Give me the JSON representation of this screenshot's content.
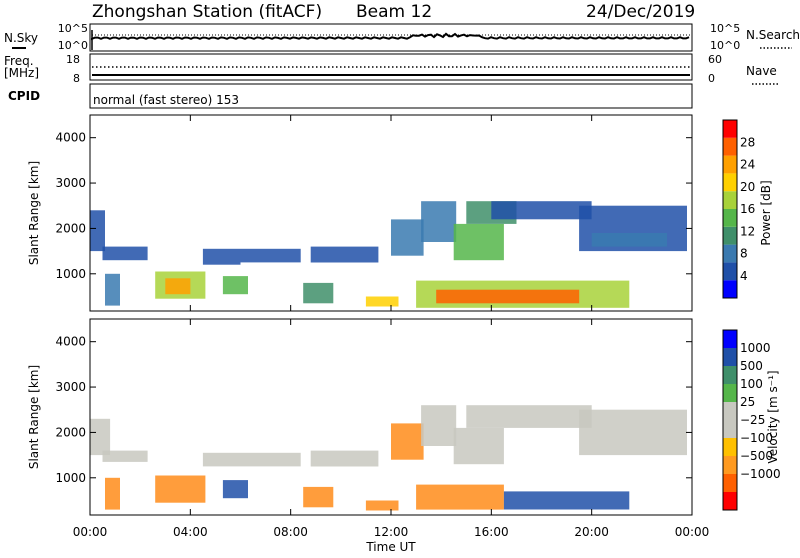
{
  "header": {
    "station": "Zhongshan Station (fitACF)",
    "beam": "Beam 12",
    "date": "24/Dec/2019"
  },
  "noise_panel": {
    "left_label": "N.Sky",
    "right_label": "N.Search",
    "left_ticks": [
      "10^5",
      "10^0"
    ],
    "right_ticks": [
      "10^5",
      "10^0"
    ]
  },
  "freq_panel": {
    "left_label_1": "Freq.",
    "left_label_2": "[MHz]",
    "right_label": "Nave",
    "left_ticks": [
      "18",
      "8"
    ],
    "right_ticks": [
      "60",
      "0"
    ]
  },
  "cpid_panel": {
    "label": "CPID",
    "text": "normal (fast stereo) 153"
  },
  "colors": {
    "power_scale": [
      "#0000ff",
      "#2050a8",
      "#3a7ab0",
      "#3f8f6a",
      "#55b64a",
      "#a8d23a",
      "#ffd000",
      "#ffa000",
      "#ff6000",
      "#ff0000"
    ],
    "velocity_scale": [
      "#ff0000",
      "#ff6000",
      "#ff9a20",
      "#ffc000",
      "#c8c8c0",
      "#c8c8c0",
      "#55b64a",
      "#3f8f6a",
      "#2050a8",
      "#0000ff"
    ]
  },
  "chart_data": [
    {
      "type": "heatmap",
      "name": "power",
      "ylabel": "Slant Range [km]",
      "ylim": [
        180,
        4500
      ],
      "yticks": [
        "1000",
        "2000",
        "3000",
        "4000"
      ],
      "xlim": [
        0,
        24
      ],
      "colorbar_label": "Power [dB]",
      "colorbar_ticks": [
        "4",
        "8",
        "12",
        "16",
        "20",
        "24",
        "28"
      ],
      "colorbar_range": [
        0,
        32
      ],
      "regions": [
        {
          "t0": 0.0,
          "t1": 0.6,
          "r0": 1500,
          "r1": 2400,
          "v": 5
        },
        {
          "t0": 0.5,
          "t1": 2.3,
          "r0": 1300,
          "r1": 1600,
          "v": 6
        },
        {
          "t0": 0.6,
          "t1": 1.2,
          "r0": 300,
          "r1": 1000,
          "v": 9
        },
        {
          "t0": 2.6,
          "t1": 4.6,
          "r0": 450,
          "r1": 1050,
          "v": 18
        },
        {
          "t0": 3.0,
          "t1": 4.0,
          "r0": 550,
          "r1": 900,
          "v": 24
        },
        {
          "t0": 4.5,
          "t1": 6.0,
          "r0": 1200,
          "r1": 1550,
          "v": 6
        },
        {
          "t0": 5.3,
          "t1": 6.3,
          "r0": 550,
          "r1": 950,
          "v": 14
        },
        {
          "t0": 6.0,
          "t1": 8.4,
          "r0": 1250,
          "r1": 1550,
          "v": 5
        },
        {
          "t0": 8.5,
          "t1": 9.7,
          "r0": 350,
          "r1": 800,
          "v": 11
        },
        {
          "t0": 8.8,
          "t1": 11.5,
          "r0": 1250,
          "r1": 1600,
          "v": 6
        },
        {
          "t0": 11.0,
          "t1": 12.3,
          "r0": 280,
          "r1": 500,
          "v": 22
        },
        {
          "t0": 12.0,
          "t1": 13.3,
          "r0": 1400,
          "r1": 2200,
          "v": 8
        },
        {
          "t0": 13.2,
          "t1": 14.6,
          "r0": 1700,
          "r1": 2600,
          "v": 9
        },
        {
          "t0": 13.0,
          "t1": 21.5,
          "r0": 250,
          "r1": 850,
          "v": 16
        },
        {
          "t0": 13.8,
          "t1": 19.5,
          "r0": 350,
          "r1": 650,
          "v": 27
        },
        {
          "t0": 14.5,
          "t1": 16.5,
          "r0": 1300,
          "r1": 2100,
          "v": 14
        },
        {
          "t0": 15.0,
          "t1": 17.0,
          "r0": 2100,
          "r1": 2600,
          "v": 10
        },
        {
          "t0": 16.0,
          "t1": 20.0,
          "r0": 2200,
          "r1": 2600,
          "v": 6
        },
        {
          "t0": 19.5,
          "t1": 23.8,
          "r0": 1500,
          "r1": 2500,
          "v": 6
        },
        {
          "t0": 20.0,
          "t1": 23.0,
          "r0": 1600,
          "r1": 1900,
          "v": 9
        }
      ]
    },
    {
      "type": "heatmap",
      "name": "velocity",
      "ylabel": "Slant Range [km]",
      "ylim": [
        180,
        4500
      ],
      "yticks": [
        "1000",
        "2000",
        "3000",
        "4000"
      ],
      "xlim": [
        0,
        24
      ],
      "xticks": [
        "00:00",
        "04:00",
        "08:00",
        "12:00",
        "16:00",
        "20:00",
        "00:00"
      ],
      "xlabel": "Time UT",
      "colorbar_label": "Velocity [m s⁻¹]",
      "colorbar_ticks": [
        "1000",
        "500",
        "100",
        "25",
        "−25",
        "−100",
        "−500",
        "−1000"
      ],
      "regions": [
        {
          "t0": 0.0,
          "t1": 0.8,
          "r0": 1500,
          "r1": 2300,
          "v": 0
        },
        {
          "t0": 0.5,
          "t1": 2.3,
          "r0": 1350,
          "r1": 1600,
          "v": 0
        },
        {
          "t0": 0.6,
          "t1": 1.2,
          "r0": 300,
          "r1": 1000,
          "v": -150
        },
        {
          "t0": 2.6,
          "t1": 4.6,
          "r0": 450,
          "r1": 1050,
          "v": -300
        },
        {
          "t0": 4.5,
          "t1": 8.4,
          "r0": 1250,
          "r1": 1550,
          "v": 0
        },
        {
          "t0": 5.3,
          "t1": 6.3,
          "r0": 550,
          "r1": 950,
          "v": 300
        },
        {
          "t0": 8.5,
          "t1": 9.7,
          "r0": 350,
          "r1": 800,
          "v": -150
        },
        {
          "t0": 8.8,
          "t1": 11.5,
          "r0": 1250,
          "r1": 1600,
          "v": 0
        },
        {
          "t0": 11.0,
          "t1": 12.3,
          "r0": 280,
          "r1": 500,
          "v": -300
        },
        {
          "t0": 12.0,
          "t1": 13.3,
          "r0": 1400,
          "r1": 2200,
          "v": -150
        },
        {
          "t0": 13.2,
          "t1": 14.6,
          "r0": 1700,
          "r1": 2600,
          "v": 0
        },
        {
          "t0": 13.0,
          "t1": 16.5,
          "r0": 300,
          "r1": 850,
          "v": -300
        },
        {
          "t0": 16.5,
          "t1": 21.5,
          "r0": 300,
          "r1": 700,
          "v": 150
        },
        {
          "t0": 14.5,
          "t1": 16.5,
          "r0": 1300,
          "r1": 2100,
          "v": 0
        },
        {
          "t0": 15.0,
          "t1": 20.0,
          "r0": 2100,
          "r1": 2600,
          "v": 0
        },
        {
          "t0": 19.5,
          "t1": 23.8,
          "r0": 1500,
          "r1": 2500,
          "v": 0
        }
      ]
    }
  ]
}
